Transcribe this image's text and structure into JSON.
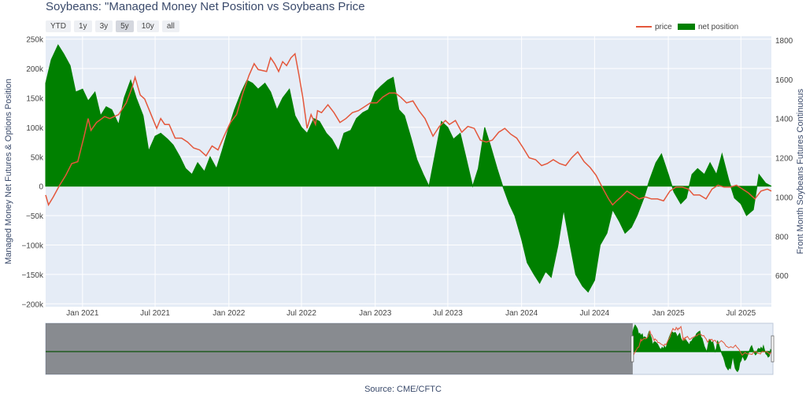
{
  "title": "Soybeans: \"Managed Money Net Position vs Soybeans Price",
  "source": "Source: CME/CFTC",
  "range_buttons": [
    {
      "label": "YTD",
      "active": false
    },
    {
      "label": "1y",
      "active": false
    },
    {
      "label": "3y",
      "active": false
    },
    {
      "label": "5y",
      "active": true
    },
    {
      "label": "10y",
      "active": false
    },
    {
      "label": "all",
      "active": false
    }
  ],
  "colors": {
    "price": "#e4573b",
    "net_position": "#008000",
    "plot_bg": "#e5ecf6",
    "grid": "#ffffff",
    "axis_text": "#444444",
    "title_text": "#3a4a6b"
  },
  "chart_data": {
    "type": "area",
    "ylabel_left": "Managed Money Net Futures & Options Position",
    "ylabel_right": "Front Month Soybeans Futures Continuous",
    "y_left_range": [
      -205000,
      255000
    ],
    "y_right_range": [
      440,
      1820
    ],
    "x_range": [
      "2020-10-01",
      "2025-09-15"
    ],
    "y_left_ticks": [
      250000,
      200000,
      150000,
      100000,
      50000,
      0,
      -50000,
      -100000,
      -150000,
      -200000
    ],
    "y_left_tick_labels": [
      "250k",
      "200k",
      "150k",
      "100k",
      "50k",
      "0",
      "−50k",
      "−100k",
      "−150k",
      "−200k"
    ],
    "y_right_ticks": [
      1800,
      1600,
      1400,
      1200,
      1000,
      800,
      600
    ],
    "y_right_tick_labels": [
      "1800",
      "1600",
      "1400",
      "1200",
      "1000",
      "800",
      "600"
    ],
    "x_ticks": [
      "2021-01-01",
      "2021-07-01",
      "2022-01-01",
      "2022-07-01",
      "2023-01-01",
      "2023-07-01",
      "2024-01-01",
      "2024-07-01",
      "2025-01-01",
      "2025-07-01"
    ],
    "x_tick_labels": [
      "Jan 2021",
      "Jul 2021",
      "Jan 2022",
      "Jul 2022",
      "Jan 2023",
      "Jul 2023",
      "Jan 2024",
      "Jul 2024",
      "Jan 2025",
      "Jul 2025"
    ],
    "grid": true,
    "legend_position": "top-right",
    "series": [
      {
        "name": "price",
        "kind": "line",
        "axis": "right",
        "points": [
          [
            "2020-10-01",
            1010
          ],
          [
            "2020-10-08",
            960
          ],
          [
            "2020-10-20",
            1000
          ],
          [
            "2020-11-05",
            1060
          ],
          [
            "2020-11-20",
            1110
          ],
          [
            "2020-12-05",
            1170
          ],
          [
            "2020-12-20",
            1180
          ],
          [
            "2021-01-05",
            1310
          ],
          [
            "2021-01-15",
            1400
          ],
          [
            "2021-01-22",
            1340
          ],
          [
            "2021-02-05",
            1380
          ],
          [
            "2021-02-25",
            1410
          ],
          [
            "2021-03-10",
            1400
          ],
          [
            "2021-04-01",
            1420
          ],
          [
            "2021-04-20",
            1480
          ],
          [
            "2021-05-05",
            1560
          ],
          [
            "2021-05-12",
            1610
          ],
          [
            "2021-05-25",
            1520
          ],
          [
            "2021-06-05",
            1500
          ],
          [
            "2021-06-15",
            1450
          ],
          [
            "2021-06-25",
            1400
          ],
          [
            "2021-07-05",
            1350
          ],
          [
            "2021-07-15",
            1400
          ],
          [
            "2021-07-25",
            1370
          ],
          [
            "2021-08-05",
            1370
          ],
          [
            "2021-08-20",
            1300
          ],
          [
            "2021-09-05",
            1300
          ],
          [
            "2021-09-20",
            1280
          ],
          [
            "2021-10-05",
            1250
          ],
          [
            "2021-10-20",
            1240
          ],
          [
            "2021-11-05",
            1210
          ],
          [
            "2021-11-20",
            1260
          ],
          [
            "2021-12-05",
            1240
          ],
          [
            "2021-12-20",
            1310
          ],
          [
            "2022-01-05",
            1380
          ],
          [
            "2022-01-20",
            1420
          ],
          [
            "2022-02-05",
            1530
          ],
          [
            "2022-02-20",
            1620
          ],
          [
            "2022-03-05",
            1680
          ],
          [
            "2022-03-15",
            1650
          ],
          [
            "2022-04-05",
            1640
          ],
          [
            "2022-04-15",
            1710
          ],
          [
            "2022-04-25",
            1680
          ],
          [
            "2022-05-05",
            1640
          ],
          [
            "2022-05-15",
            1690
          ],
          [
            "2022-05-25",
            1670
          ],
          [
            "2022-06-05",
            1710
          ],
          [
            "2022-06-15",
            1730
          ],
          [
            "2022-06-25",
            1620
          ],
          [
            "2022-07-05",
            1500
          ],
          [
            "2022-07-15",
            1350
          ],
          [
            "2022-07-25",
            1420
          ],
          [
            "2022-08-05",
            1370
          ],
          [
            "2022-08-10",
            1440
          ],
          [
            "2022-08-20",
            1430
          ],
          [
            "2022-09-05",
            1470
          ],
          [
            "2022-09-20",
            1430
          ],
          [
            "2022-10-05",
            1380
          ],
          [
            "2022-10-20",
            1400
          ],
          [
            "2022-11-05",
            1430
          ],
          [
            "2022-11-20",
            1440
          ],
          [
            "2022-12-05",
            1460
          ],
          [
            "2022-12-20",
            1480
          ],
          [
            "2023-01-05",
            1480
          ],
          [
            "2023-01-20",
            1510
          ],
          [
            "2023-02-05",
            1530
          ],
          [
            "2023-02-20",
            1530
          ],
          [
            "2023-03-05",
            1510
          ],
          [
            "2023-03-20",
            1480
          ],
          [
            "2023-04-05",
            1490
          ],
          [
            "2023-04-20",
            1440
          ],
          [
            "2023-05-05",
            1400
          ],
          [
            "2023-05-25",
            1310
          ],
          [
            "2023-06-10",
            1360
          ],
          [
            "2023-06-25",
            1390
          ],
          [
            "2023-07-05",
            1370
          ],
          [
            "2023-07-20",
            1390
          ],
          [
            "2023-08-05",
            1330
          ],
          [
            "2023-08-20",
            1360
          ],
          [
            "2023-09-05",
            1350
          ],
          [
            "2023-09-20",
            1290
          ],
          [
            "2023-10-05",
            1280
          ],
          [
            "2023-10-20",
            1290
          ],
          [
            "2023-11-05",
            1330
          ],
          [
            "2023-11-20",
            1350
          ],
          [
            "2023-12-05",
            1320
          ],
          [
            "2023-12-20",
            1300
          ],
          [
            "2024-01-05",
            1250
          ],
          [
            "2024-01-20",
            1200
          ],
          [
            "2024-02-05",
            1190
          ],
          [
            "2024-02-20",
            1160
          ],
          [
            "2024-03-05",
            1170
          ],
          [
            "2024-03-20",
            1190
          ],
          [
            "2024-04-05",
            1170
          ],
          [
            "2024-04-20",
            1160
          ],
          [
            "2024-05-05",
            1200
          ],
          [
            "2024-05-20",
            1230
          ],
          [
            "2024-06-05",
            1180
          ],
          [
            "2024-06-20",
            1150
          ],
          [
            "2024-07-05",
            1110
          ],
          [
            "2024-07-20",
            1050
          ],
          [
            "2024-08-05",
            990
          ],
          [
            "2024-08-15",
            960
          ],
          [
            "2024-08-25",
            980
          ],
          [
            "2024-09-05",
            1000
          ],
          [
            "2024-09-20",
            1030
          ],
          [
            "2024-10-05",
            1010
          ],
          [
            "2024-10-20",
            990
          ],
          [
            "2024-11-05",
            1000
          ],
          [
            "2024-11-20",
            990
          ],
          [
            "2024-12-05",
            990
          ],
          [
            "2024-12-20",
            980
          ],
          [
            "2025-01-05",
            1030
          ],
          [
            "2025-01-20",
            1050
          ],
          [
            "2025-02-05",
            1050
          ],
          [
            "2025-02-20",
            1040
          ],
          [
            "2025-03-05",
            1010
          ],
          [
            "2025-03-20",
            1010
          ],
          [
            "2025-04-05",
            990
          ],
          [
            "2025-04-20",
            1040
          ],
          [
            "2025-05-05",
            1060
          ],
          [
            "2025-05-20",
            1050
          ],
          [
            "2025-06-05",
            1050
          ],
          [
            "2025-06-20",
            1060
          ],
          [
            "2025-07-05",
            1040
          ],
          [
            "2025-07-20",
            1020
          ],
          [
            "2025-08-05",
            990
          ],
          [
            "2025-08-20",
            1030
          ],
          [
            "2025-09-05",
            1040
          ],
          [
            "2025-09-15",
            1030
          ]
        ]
      },
      {
        "name": "net position",
        "kind": "area",
        "axis": "left",
        "points": [
          [
            "2020-10-01",
            175000
          ],
          [
            "2020-10-15",
            215000
          ],
          [
            "2020-11-01",
            240000
          ],
          [
            "2020-11-15",
            225000
          ],
          [
            "2020-12-01",
            205000
          ],
          [
            "2020-12-15",
            160000
          ],
          [
            "2021-01-01",
            165000
          ],
          [
            "2021-01-15",
            145000
          ],
          [
            "2021-02-01",
            160000
          ],
          [
            "2021-02-15",
            120000
          ],
          [
            "2021-03-01",
            135000
          ],
          [
            "2021-03-15",
            130000
          ],
          [
            "2021-04-01",
            105000
          ],
          [
            "2021-04-15",
            150000
          ],
          [
            "2021-05-01",
            180000
          ],
          [
            "2021-05-15",
            150000
          ],
          [
            "2021-06-01",
            120000
          ],
          [
            "2021-06-15",
            60000
          ],
          [
            "2021-07-01",
            85000
          ],
          [
            "2021-07-15",
            90000
          ],
          [
            "2021-08-01",
            80000
          ],
          [
            "2021-08-15",
            70000
          ],
          [
            "2021-09-01",
            50000
          ],
          [
            "2021-09-15",
            30000
          ],
          [
            "2021-10-01",
            20000
          ],
          [
            "2021-10-15",
            40000
          ],
          [
            "2021-11-01",
            25000
          ],
          [
            "2021-11-15",
            50000
          ],
          [
            "2021-12-01",
            30000
          ],
          [
            "2021-12-15",
            60000
          ],
          [
            "2022-01-01",
            100000
          ],
          [
            "2022-01-15",
            130000
          ],
          [
            "2022-02-01",
            160000
          ],
          [
            "2022-02-15",
            180000
          ],
          [
            "2022-03-01",
            175000
          ],
          [
            "2022-03-15",
            165000
          ],
          [
            "2022-04-01",
            175000
          ],
          [
            "2022-04-15",
            160000
          ],
          [
            "2022-05-01",
            130000
          ],
          [
            "2022-05-15",
            150000
          ],
          [
            "2022-06-01",
            165000
          ],
          [
            "2022-06-15",
            120000
          ],
          [
            "2022-07-01",
            100000
          ],
          [
            "2022-07-15",
            90000
          ],
          [
            "2022-08-01",
            115000
          ],
          [
            "2022-08-15",
            110000
          ],
          [
            "2022-09-01",
            90000
          ],
          [
            "2022-09-15",
            80000
          ],
          [
            "2022-10-01",
            60000
          ],
          [
            "2022-10-15",
            90000
          ],
          [
            "2022-11-01",
            95000
          ],
          [
            "2022-11-15",
            115000
          ],
          [
            "2022-12-01",
            125000
          ],
          [
            "2022-12-15",
            130000
          ],
          [
            "2023-01-01",
            160000
          ],
          [
            "2023-01-15",
            170000
          ],
          [
            "2023-02-01",
            180000
          ],
          [
            "2023-02-15",
            185000
          ],
          [
            "2023-03-01",
            130000
          ],
          [
            "2023-03-15",
            120000
          ],
          [
            "2023-04-01",
            80000
          ],
          [
            "2023-04-15",
            45000
          ],
          [
            "2023-05-01",
            20000
          ],
          [
            "2023-05-15",
            0
          ],
          [
            "2023-06-01",
            60000
          ],
          [
            "2023-06-15",
            110000
          ],
          [
            "2023-07-01",
            100000
          ],
          [
            "2023-07-15",
            80000
          ],
          [
            "2023-08-01",
            90000
          ],
          [
            "2023-08-15",
            50000
          ],
          [
            "2023-09-01",
            0
          ],
          [
            "2023-09-15",
            30000
          ],
          [
            "2023-10-01",
            100000
          ],
          [
            "2023-10-15",
            70000
          ],
          [
            "2023-11-01",
            30000
          ],
          [
            "2023-11-15",
            0
          ],
          [
            "2023-12-01",
            -30000
          ],
          [
            "2023-12-15",
            -50000
          ],
          [
            "2024-01-01",
            -90000
          ],
          [
            "2024-01-15",
            -130000
          ],
          [
            "2024-02-01",
            -150000
          ],
          [
            "2024-02-15",
            -165000
          ],
          [
            "2024-03-01",
            -145000
          ],
          [
            "2024-03-15",
            -155000
          ],
          [
            "2024-04-01",
            -100000
          ],
          [
            "2024-04-15",
            -40000
          ],
          [
            "2024-05-01",
            -100000
          ],
          [
            "2024-05-15",
            -150000
          ],
          [
            "2024-06-01",
            -170000
          ],
          [
            "2024-06-15",
            -180000
          ],
          [
            "2024-07-01",
            -160000
          ],
          [
            "2024-07-15",
            -100000
          ],
          [
            "2024-08-01",
            -80000
          ],
          [
            "2024-08-15",
            -40000
          ],
          [
            "2024-09-01",
            -60000
          ],
          [
            "2024-09-15",
            -80000
          ],
          [
            "2024-10-01",
            -70000
          ],
          [
            "2024-10-15",
            -50000
          ],
          [
            "2024-11-01",
            -20000
          ],
          [
            "2024-11-15",
            10000
          ],
          [
            "2024-12-01",
            40000
          ],
          [
            "2024-12-15",
            55000
          ],
          [
            "2025-01-01",
            20000
          ],
          [
            "2025-01-15",
            -10000
          ],
          [
            "2025-02-01",
            -30000
          ],
          [
            "2025-02-15",
            -20000
          ],
          [
            "2025-03-01",
            20000
          ],
          [
            "2025-03-15",
            30000
          ],
          [
            "2025-04-01",
            20000
          ],
          [
            "2025-04-15",
            40000
          ],
          [
            "2025-05-01",
            20000
          ],
          [
            "2025-05-15",
            55000
          ],
          [
            "2025-06-01",
            10000
          ],
          [
            "2025-06-15",
            -20000
          ],
          [
            "2025-07-01",
            -30000
          ],
          [
            "2025-07-15",
            -50000
          ],
          [
            "2025-08-01",
            -40000
          ],
          [
            "2025-08-15",
            20000
          ],
          [
            "2025-09-01",
            5000
          ],
          [
            "2025-09-15",
            0
          ]
        ]
      }
    ],
    "range_slider": {
      "x_range": [
        "2000-01-01",
        "2025-09-15"
      ],
      "selected_range": [
        "2020-10-01",
        "2025-09-15"
      ]
    }
  }
}
